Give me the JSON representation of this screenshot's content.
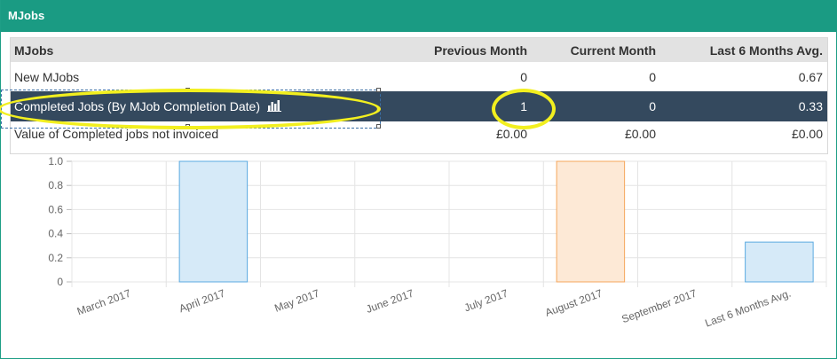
{
  "panel": {
    "title": "MJobs"
  },
  "table": {
    "headers": [
      "MJobs",
      "Previous Month",
      "Current Month",
      "Last 6 Months Avg."
    ],
    "rows": [
      {
        "label": "New MJobs",
        "prev": "0",
        "curr": "0",
        "avg": "0.67"
      },
      {
        "label": "Completed Jobs (By MJob Completion Date)",
        "prev": "1",
        "curr": "0",
        "avg": "0.33"
      },
      {
        "label": "Value of Completed jobs not invoiced",
        "prev": "£0.00",
        "curr": "£0.00",
        "avg": "£0.00"
      }
    ]
  },
  "colors": {
    "header": "#1a9b83",
    "selected_row": "#34495e",
    "highlight": "#f2ef1f",
    "bar_blue": "#5aa9e0",
    "bar_orange": "#f5a65b"
  },
  "chart_data": {
    "type": "bar",
    "categories": [
      "March 2017",
      "April 2017",
      "May 2017",
      "June 2017",
      "July 2017",
      "August 2017",
      "September 2017",
      "Last 6 Months Avg."
    ],
    "values": [
      0,
      1,
      0,
      0,
      0,
      1,
      0,
      0.33
    ],
    "highlight_categories": [
      "August 2017"
    ],
    "ylim": [
      0,
      1
    ],
    "yticks": [
      "0",
      "0.2",
      "0.4",
      "0.6",
      "0.8",
      "1.0"
    ],
    "title": "",
    "xlabel": "",
    "ylabel": ""
  }
}
